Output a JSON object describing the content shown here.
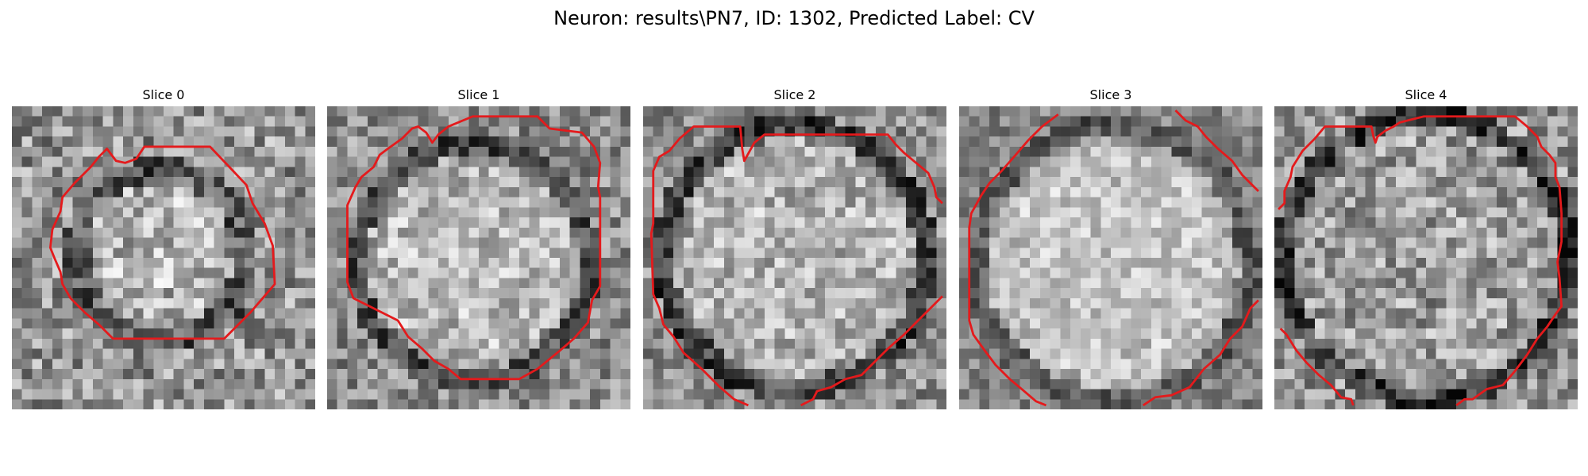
{
  "figure": {
    "title": "Neuron: results\\PN7, ID: 1302, Predicted Label: CV"
  },
  "panels": [
    {
      "title": "Slice 0"
    },
    {
      "title": "Slice 1"
    },
    {
      "title": "Slice 2"
    },
    {
      "title": "Slice 3"
    },
    {
      "title": "Slice 4"
    }
  ],
  "colors": {
    "contour": "#e41a1c",
    "background": "#ffffff"
  }
}
